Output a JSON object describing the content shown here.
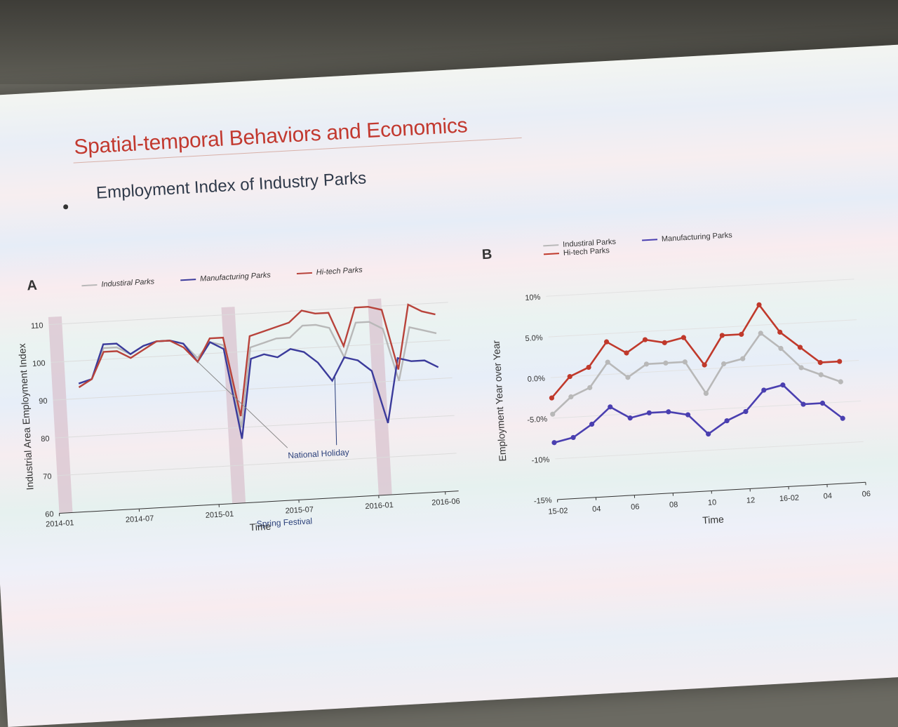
{
  "slide": {
    "title": "Spatial-temporal Behaviors and Economics",
    "bullet": "Employment Index of Industry Parks"
  },
  "chart_data": [
    {
      "panel": "A",
      "type": "line",
      "xlabel": "Time",
      "ylabel": "Industrial Area Employment Index",
      "ylim": [
        60,
        112
      ],
      "yticks": [
        60,
        70,
        80,
        90,
        100,
        110
      ],
      "xticks": [
        "2014-01",
        "2014-07",
        "2015-01",
        "2015-07",
        "2016-01",
        "2016-06"
      ],
      "x": [
        "2014-03",
        "2014-04",
        "2014-05",
        "2014-06",
        "2014-07",
        "2014-08",
        "2014-09",
        "2014-10",
        "2014-11",
        "2014-12",
        "2015-01",
        "2015-02",
        "2015-03",
        "2015-04",
        "2015-05",
        "2015-06",
        "2015-07",
        "2015-08",
        "2015-09",
        "2015-10",
        "2015-11",
        "2015-12",
        "2016-01",
        "2016-02",
        "2016-03",
        "2016-04",
        "2016-05",
        "2016-06"
      ],
      "series": [
        {
          "name": "Industiral Parks",
          "color": "#b8b8b8",
          "values": [
            93,
            95,
            103,
            103,
            101,
            103,
            104,
            104,
            103,
            99,
            103,
            102,
            80,
            101,
            102,
            103,
            103,
            106,
            106,
            105,
            97,
            106,
            106,
            104,
            90,
            104,
            103,
            102
          ]
        },
        {
          "name": "Manufacturing Parks",
          "color": "#3b3b9b",
          "values": [
            94,
            95,
            104,
            104,
            101,
            103,
            104,
            104,
            103,
            98,
            103,
            101,
            77,
            98,
            99,
            98,
            100,
            99,
            96,
            91,
            97,
            96,
            93,
            79,
            96,
            95,
            95,
            93
          ]
        },
        {
          "name": "Hi-tech Parks",
          "color": "#b8433b",
          "values": [
            93,
            95,
            102,
            102,
            100,
            102,
            104,
            104,
            102,
            98,
            104,
            104,
            83,
            104,
            105,
            106,
            107,
            110,
            109,
            109,
            100,
            110,
            110,
            109,
            93,
            110,
            108,
            107
          ]
        }
      ],
      "shaded_periods": [
        [
          "2014-01",
          "2014-02"
        ],
        [
          "2015-02",
          "2015-03"
        ],
        [
          "2016-01",
          "2016-02"
        ]
      ],
      "annotations": [
        "National Holiday",
        "Spring Festival"
      ],
      "legend_position": "top"
    },
    {
      "panel": "B",
      "type": "line",
      "xlabel": "Time",
      "ylabel": "Employment Year over Year",
      "ylim": [
        -15,
        10
      ],
      "yticks": [
        "10%",
        "5.0%",
        "0.0%",
        "-5.0%",
        "-10%",
        "-15%"
      ],
      "xticks": [
        "15-02",
        "04",
        "06",
        "08",
        "10",
        "12",
        "16-02",
        "04",
        "06"
      ],
      "x": [
        "2015-02",
        "2015-03",
        "2015-04",
        "2015-05",
        "2015-06",
        "2015-07",
        "2015-08",
        "2015-09",
        "2015-10",
        "2015-11",
        "2015-12",
        "2016-01",
        "2016-02",
        "2016-03",
        "2016-04",
        "2016-05"
      ],
      "series": [
        {
          "name": "Industiral Parks",
          "color": "#b8b8b8",
          "values": [
            -4.5,
            -2.5,
            -1.5,
            1.5,
            -0.5,
            1,
            1,
            1,
            -3,
            0.5,
            1,
            4,
            2,
            -0.5,
            -1.5,
            -2.5
          ]
        },
        {
          "name": "Manufacturing Parks",
          "color": "#4a3fb0",
          "values": [
            -8,
            -7.5,
            -6,
            -4,
            -5.5,
            -5,
            -5,
            -5.5,
            -8,
            -6.5,
            -5.5,
            -3,
            -2.5,
            -5,
            -5,
            -7
          ]
        },
        {
          "name": "Hi-tech Parks",
          "color": "#c0392b",
          "values": [
            -2.5,
            0,
            1,
            4,
            2.5,
            4,
            3.5,
            4,
            0.5,
            4,
            4,
            7.5,
            4,
            2,
            0,
            0
          ]
        }
      ],
      "legend_position": "top"
    }
  ]
}
